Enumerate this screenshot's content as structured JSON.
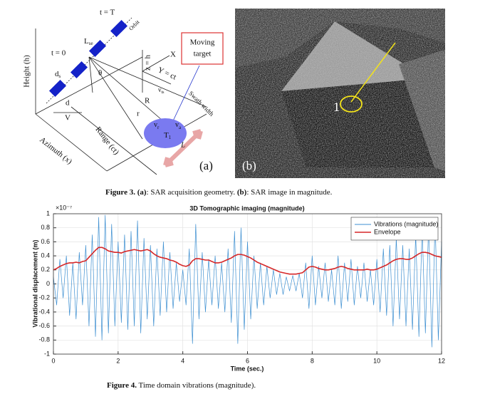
{
  "figure3": {
    "panel_a": {
      "t_end": "t = T",
      "orbit": "Orbit",
      "t_start": "t = 0",
      "l_se": "L",
      "l_se_sub": "se",
      "height": "Height (h)",
      "d_s": "d",
      "d_s_sub": "s",
      "d": "d",
      "v": "V",
      "theta": "θ",
      "z": "z = h",
      "x_axis": "X",
      "y_axis": "Y = ct",
      "v_ts": "v",
      "v_ts_sub": "ts",
      "big_r": "R",
      "small_r": "r",
      "swath": "Swath width",
      "target_line1": "Moving",
      "target_line2": "target",
      "t1": "T",
      "t1_sub": "1",
      "v_r": "v",
      "v_r_sub": "r",
      "v_a": "v",
      "v_a_sub": "a",
      "azimuth": "Azimuth (x)",
      "range": "Range (ct)",
      "l": "L",
      "label": "(a)"
    },
    "panel_b": {
      "label": "(b)",
      "marker": "1"
    },
    "caption": {
      "label": "Figure 3.",
      "parts": [
        "(a)",
        ": SAR acquisition geometry. ",
        "(b)",
        ": SAR image in magnitude."
      ]
    }
  },
  "figure4": {
    "caption": {
      "label": "Figure 4.",
      "text": "Time domain vibrations (magnitude)."
    }
  },
  "chart_data": {
    "type": "line",
    "title": "3D Tomographic imaging (magnitude)",
    "x_label": "Time (sec.)",
    "y_label": "Vibrational displacement (m)",
    "y_exponent": "×10⁻⁷",
    "xlim": [
      0,
      12
    ],
    "xticks": [
      0,
      2,
      4,
      6,
      8,
      10,
      12
    ],
    "ylim": [
      -1,
      1
    ],
    "yticks": [
      -1,
      -0.8,
      -0.6,
      -0.4,
      -0.2,
      0,
      0.2,
      0.4,
      0.6,
      0.8,
      1
    ],
    "grid": true,
    "legend": "northeast",
    "x": [
      0,
      0.1,
      0.2,
      0.3,
      0.4,
      0.5,
      0.6,
      0.7,
      0.8,
      0.9,
      1,
      1.1,
      1.2,
      1.3,
      1.4,
      1.5,
      1.6,
      1.7,
      1.8,
      1.9,
      2,
      2.1,
      2.2,
      2.3,
      2.4,
      2.5,
      2.6,
      2.7,
      2.8,
      2.9,
      3,
      3.1,
      3.2,
      3.3,
      3.4,
      3.5,
      3.6,
      3.7,
      3.8,
      3.9,
      4,
      4.1,
      4.2,
      4.3,
      4.4,
      4.5,
      4.6,
      4.7,
      4.8,
      4.9,
      5,
      5.1,
      5.2,
      5.3,
      5.4,
      5.5,
      5.6,
      5.7,
      5.8,
      5.9,
      6,
      6.1,
      6.2,
      6.3,
      6.4,
      6.5,
      6.6,
      6.7,
      6.8,
      6.9,
      7,
      7.1,
      7.2,
      7.3,
      7.4,
      7.5,
      7.6,
      7.7,
      7.8,
      7.9,
      8,
      8.1,
      8.2,
      8.3,
      8.4,
      8.5,
      8.6,
      8.7,
      8.8,
      8.9,
      9,
      9.1,
      9.2,
      9.3,
      9.4,
      9.5,
      9.6,
      9.7,
      9.8,
      9.9,
      10,
      10.1,
      10.2,
      10.3,
      10.4,
      10.5,
      10.6,
      10.7,
      10.8,
      10.9,
      11,
      11.1,
      11.2,
      11.3,
      11.4,
      11.5,
      11.6,
      11.7,
      11.8,
      11.9,
      12
    ],
    "series": [
      {
        "name": "Vibrations (magnitude)",
        "color": "#3d8fd1",
        "values": [
          0.1,
          -0.3,
          0.35,
          -0.2,
          0.4,
          -0.45,
          0.3,
          -0.5,
          0.45,
          -0.3,
          0.55,
          -0.6,
          0.7,
          -0.75,
          0.95,
          -0.8,
          0.98,
          -0.7,
          0.85,
          -0.6,
          0.6,
          -0.55,
          0.7,
          -0.65,
          0.75,
          -0.6,
          0.9,
          -0.7,
          0.65,
          -0.5,
          0.55,
          -0.6,
          0.5,
          -0.45,
          0.6,
          -0.4,
          0.45,
          -0.35,
          0.3,
          -0.25,
          0.2,
          -0.3,
          0.5,
          -0.85,
          0.85,
          -0.5,
          0.45,
          -0.4,
          0.35,
          -0.3,
          0.4,
          -0.35,
          0.3,
          -0.4,
          0.5,
          -0.55,
          0.75,
          -0.85,
          0.8,
          -0.65,
          0.6,
          -0.5,
          0.4,
          -0.35,
          0.3,
          -0.3,
          0.25,
          -0.2,
          0.2,
          -0.15,
          0.15,
          -0.15,
          0.1,
          -0.1,
          0.12,
          -0.1,
          0.15,
          -0.2,
          0.3,
          -0.35,
          0.4,
          -0.3,
          0.25,
          -0.2,
          0.3,
          -0.25,
          0.2,
          -0.3,
          0.4,
          -0.35,
          0.3,
          -0.25,
          0.35,
          -0.3,
          0.25,
          -0.2,
          0.3,
          -0.25,
          0.2,
          -0.3,
          0.35,
          -0.4,
          0.5,
          -0.45,
          0.55,
          -0.6,
          0.65,
          -0.5,
          0.55,
          -0.6,
          0.5,
          -0.65,
          0.7,
          -0.75,
          0.8,
          -0.7,
          0.85,
          -0.9,
          0.9,
          -0.8,
          0.6
        ]
      },
      {
        "name": "Envelope",
        "color": "#d62728",
        "values": [
          0.2,
          0.22,
          0.25,
          0.27,
          0.29,
          0.3,
          0.3,
          0.31,
          0.3,
          0.32,
          0.33,
          0.38,
          0.43,
          0.48,
          0.52,
          0.52,
          0.5,
          0.47,
          0.46,
          0.45,
          0.45,
          0.44,
          0.46,
          0.47,
          0.48,
          0.49,
          0.48,
          0.47,
          0.48,
          0.49,
          0.47,
          0.43,
          0.4,
          0.38,
          0.37,
          0.36,
          0.34,
          0.33,
          0.31,
          0.28,
          0.26,
          0.25,
          0.27,
          0.33,
          0.36,
          0.36,
          0.35,
          0.34,
          0.34,
          0.32,
          0.3,
          0.3,
          0.31,
          0.33,
          0.35,
          0.37,
          0.4,
          0.42,
          0.42,
          0.41,
          0.39,
          0.37,
          0.34,
          0.31,
          0.29,
          0.27,
          0.25,
          0.23,
          0.21,
          0.19,
          0.17,
          0.16,
          0.15,
          0.14,
          0.14,
          0.14,
          0.15,
          0.16,
          0.2,
          0.24,
          0.25,
          0.24,
          0.22,
          0.21,
          0.2,
          0.2,
          0.21,
          0.22,
          0.24,
          0.25,
          0.24,
          0.22,
          0.21,
          0.2,
          0.2,
          0.2,
          0.2,
          0.21,
          0.2,
          0.2,
          0.21,
          0.23,
          0.25,
          0.27,
          0.3,
          0.33,
          0.35,
          0.36,
          0.36,
          0.35,
          0.35,
          0.37,
          0.4,
          0.43,
          0.45,
          0.45,
          0.44,
          0.42,
          0.4,
          0.39,
          0.38
        ]
      }
    ]
  }
}
